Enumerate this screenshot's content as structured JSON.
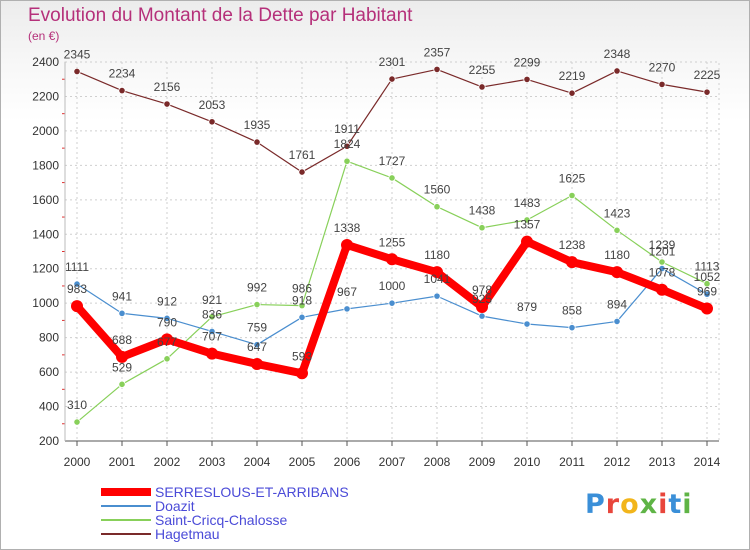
{
  "title": "Evolution du Montant de la Dette par Habitant",
  "unit_label": "(en €)",
  "logo": {
    "text": "Proxiti",
    "letters": [
      "P",
      "r",
      "o",
      "x",
      "i",
      "t",
      "i"
    ],
    "colors": [
      "#3a8fd8",
      "#e8463c",
      "#f2b51b",
      "#5fb446",
      "#e8463c",
      "#3a8fd8",
      "#5fb446"
    ]
  },
  "chart_data": {
    "type": "line",
    "title": "Evolution du Montant de la Dette par Habitant",
    "ylabel": "(en €)",
    "xlabel": "",
    "x": [
      "2000",
      "2001",
      "2002",
      "2003",
      "2004",
      "2005",
      "2006",
      "2007",
      "2008",
      "2009",
      "2010",
      "2011",
      "2012",
      "2013",
      "2014"
    ],
    "ylim": [
      200,
      2400
    ],
    "yticks": [
      200,
      400,
      600,
      800,
      1000,
      1200,
      1400,
      1600,
      1800,
      2000,
      2200,
      2400
    ],
    "grid": true,
    "legend_position": "bottom-left",
    "series": [
      {
        "name": "SERRESLOUS-ET-ARRIBANS",
        "color": "#ff0000",
        "values": [
          983,
          688,
          790,
          707,
          647,
          593,
          1338,
          1255,
          1180,
          978,
          1357,
          1238,
          1180,
          1078,
          969
        ]
      },
      {
        "name": "Doazit",
        "color": "#4a8ecf",
        "values": [
          1111,
          941,
          912,
          836,
          759,
          918,
          967,
          1000,
          1041,
          925,
          879,
          858,
          894,
          1201,
          1052
        ]
      },
      {
        "name": "Saint-Cricq-Chalosse",
        "color": "#88d05a",
        "values": [
          310,
          529,
          677,
          921,
          992,
          986,
          1824,
          1727,
          1560,
          1438,
          1483,
          1625,
          1423,
          1239,
          1113
        ]
      },
      {
        "name": "Hagetmau",
        "color": "#7a2a2a",
        "values": [
          2345,
          2234,
          2156,
          2053,
          1935,
          1761,
          1911,
          2301,
          2357,
          2255,
          2299,
          2219,
          2348,
          2270,
          2225
        ]
      }
    ]
  }
}
